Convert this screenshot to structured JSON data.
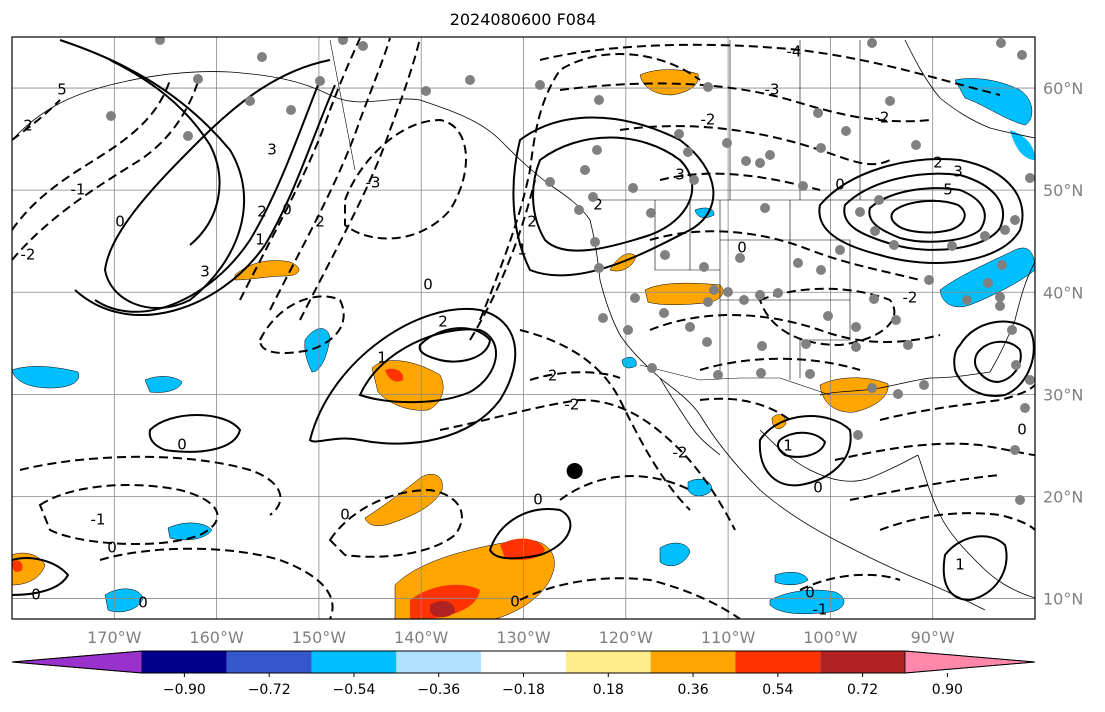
{
  "title": "2024080600 F084",
  "map": {
    "lon_range": [
      -180,
      -80
    ],
    "lat_range": [
      8,
      65
    ],
    "gridline_color": "#888888",
    "lat_ticks": [
      {
        "lat": 60,
        "label": "60°N"
      },
      {
        "lat": 50,
        "label": "50°N"
      },
      {
        "lat": 40,
        "label": "40°N"
      },
      {
        "lat": 30,
        "label": "30°N"
      },
      {
        "lat": 20,
        "label": "20°N"
      },
      {
        "lat": 10,
        "label": "10°N"
      }
    ],
    "lon_ticks": [
      {
        "lon": -170,
        "label": "170°W"
      },
      {
        "lon": -160,
        "label": "160°W"
      },
      {
        "lon": -150,
        "label": "150°W"
      },
      {
        "lon": -140,
        "label": "140°W"
      },
      {
        "lon": -130,
        "label": "130°W"
      },
      {
        "lon": -120,
        "label": "120°W"
      },
      {
        "lon": -110,
        "label": "110°W"
      },
      {
        "lon": -100,
        "label": "100°W"
      },
      {
        "lon": -90,
        "label": "90°W"
      }
    ],
    "contour_labels": [
      "0",
      "1",
      "2",
      "3",
      "5",
      "-1",
      "-2",
      "-3",
      "-4"
    ],
    "center_marker": {
      "lon": -125,
      "lat": 22.5
    }
  },
  "colorbar": {
    "colors": [
      "#9932cc",
      "#00008b",
      "#3657cc",
      "#00bfff",
      "#b0e2ff",
      "#ffffff",
      "#ffec8b",
      "#ffa500",
      "#ff3300",
      "#b22222",
      "#ff88aa"
    ],
    "tick_labels": [
      "−0.90",
      "−0.72",
      "−0.54",
      "−0.36",
      "−0.18",
      "0.18",
      "0.36",
      "0.54",
      "0.72",
      "0.90"
    ]
  }
}
